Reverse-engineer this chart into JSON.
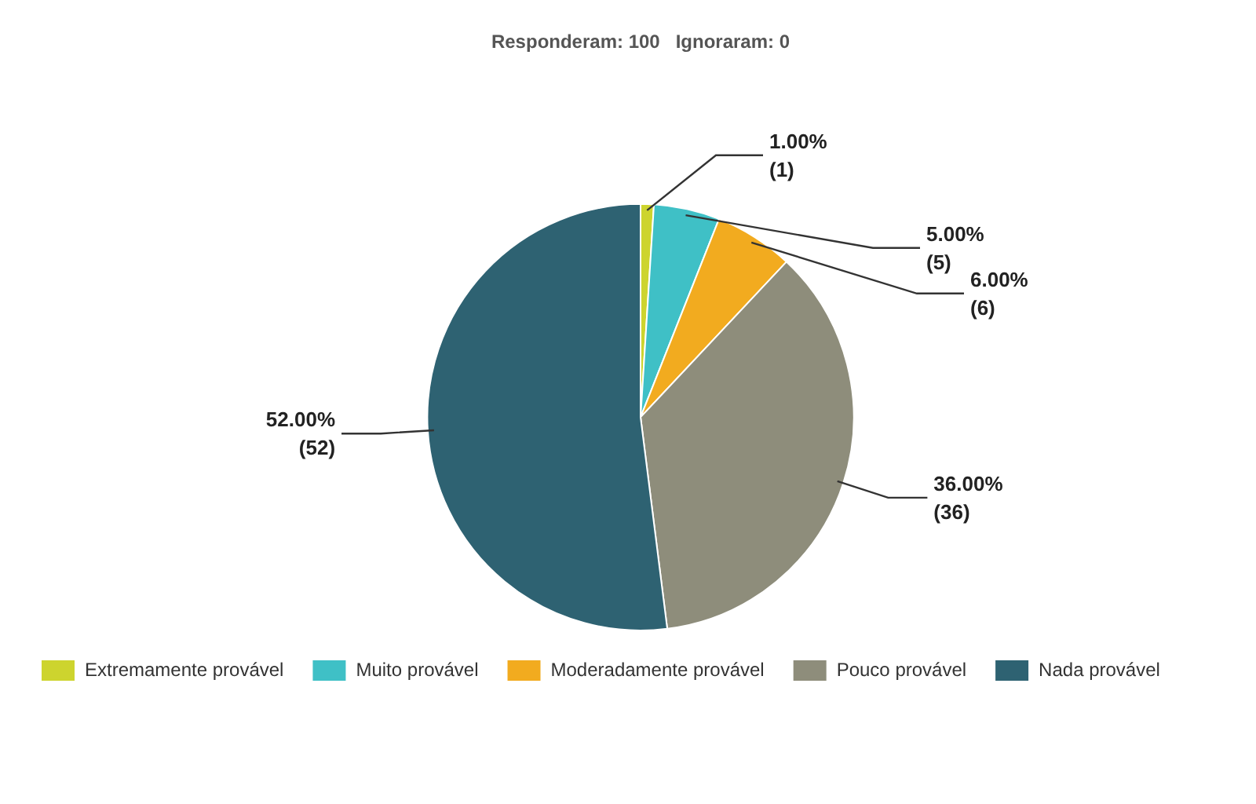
{
  "chart_data": {
    "type": "pie",
    "title": "Responderam: 100   Ignoraram: 0",
    "categories": [
      "Extremamente provável",
      "Muito provável",
      "Moderadamente provável",
      "Pouco provável",
      "Nada provável"
    ],
    "values": [
      1,
      5,
      6,
      36,
      52
    ],
    "colors": [
      "#cdd42e",
      "#3fc0c6",
      "#f2ab1f",
      "#8e8d7b",
      "#2e6272"
    ],
    "value_labels": [
      "1.00% (1)",
      "5.00% (5)",
      "6.00% (6)",
      "36.00% (36)",
      "52.00% (52)"
    ],
    "legend": "bottom"
  }
}
